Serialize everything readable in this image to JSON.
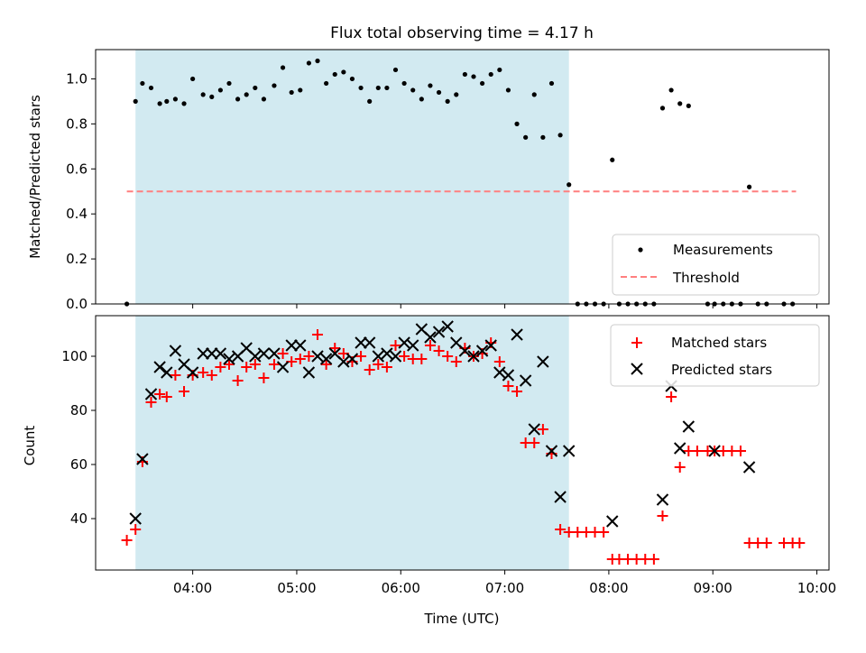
{
  "chart_data": {
    "title": "Flux total observing time = 4.17 h",
    "xlabel": "Time (UTC)",
    "x_ticks": [
      "04:00",
      "05:00",
      "06:00",
      "07:00",
      "08:00",
      "09:00",
      "10:00"
    ],
    "shaded_region": {
      "start": "03:27",
      "end": "07:37",
      "color": "#add8e6"
    },
    "panels": [
      {
        "type": "scatter",
        "ylabel": "Matched/Predicted stars",
        "ylim": [
          0,
          1.13
        ],
        "y_ticks": [
          "0.0",
          "0.2",
          "0.4",
          "0.6",
          "0.8",
          "1.0"
        ],
        "legend": {
          "placement": "lower-right",
          "entries": [
            "Measurements",
            "Threshold"
          ]
        },
        "threshold": {
          "name": "Threshold",
          "value": 0.5,
          "x_start": "03:22",
          "x_end": "09:48",
          "color": "#ff7f7f"
        },
        "series": [
          {
            "name": "Measurements",
            "marker": "dot",
            "color": "#000000",
            "points": [
              [
                "03:22",
                0.0
              ],
              [
                "03:27",
                0.9
              ],
              [
                "03:31",
                0.98
              ],
              [
                "03:36",
                0.96
              ],
              [
                "03:41",
                0.89
              ],
              [
                "03:45",
                0.9
              ],
              [
                "03:50",
                0.91
              ],
              [
                "03:55",
                0.89
              ],
              [
                "04:00",
                1.0
              ],
              [
                "04:06",
                0.93
              ],
              [
                "04:11",
                0.92
              ],
              [
                "04:16",
                0.95
              ],
              [
                "04:21",
                0.98
              ],
              [
                "04:26",
                0.91
              ],
              [
                "04:31",
                0.93
              ],
              [
                "04:36",
                0.96
              ],
              [
                "04:41",
                0.91
              ],
              [
                "04:47",
                0.97
              ],
              [
                "04:52",
                1.05
              ],
              [
                "04:57",
                0.94
              ],
              [
                "05:02",
                0.95
              ],
              [
                "05:07",
                1.07
              ],
              [
                "05:12",
                1.08
              ],
              [
                "05:17",
                0.98
              ],
              [
                "05:22",
                1.02
              ],
              [
                "05:27",
                1.03
              ],
              [
                "05:32",
                1.0
              ],
              [
                "05:37",
                0.96
              ],
              [
                "05:42",
                0.9
              ],
              [
                "05:47",
                0.96
              ],
              [
                "05:52",
                0.96
              ],
              [
                "05:57",
                1.04
              ],
              [
                "06:02",
                0.98
              ],
              [
                "06:07",
                0.95
              ],
              [
                "06:12",
                0.91
              ],
              [
                "06:17",
                0.97
              ],
              [
                "06:22",
                0.94
              ],
              [
                "06:27",
                0.9
              ],
              [
                "06:32",
                0.93
              ],
              [
                "06:37",
                1.02
              ],
              [
                "06:42",
                1.01
              ],
              [
                "06:47",
                0.98
              ],
              [
                "06:52",
                1.02
              ],
              [
                "06:57",
                1.04
              ],
              [
                "07:02",
                0.95
              ],
              [
                "07:07",
                0.8
              ],
              [
                "07:12",
                0.74
              ],
              [
                "07:17",
                0.93
              ],
              [
                "07:22",
                0.74
              ],
              [
                "07:27",
                0.98
              ],
              [
                "07:32",
                0.75
              ],
              [
                "07:37",
                0.53
              ],
              [
                "07:42",
                0.0
              ],
              [
                "07:47",
                0.0
              ],
              [
                "07:52",
                0.0
              ],
              [
                "07:57",
                0.0
              ],
              [
                "08:02",
                0.64
              ],
              [
                "08:06",
                0.0
              ],
              [
                "08:11",
                0.0
              ],
              [
                "08:16",
                0.0
              ],
              [
                "08:21",
                0.0
              ],
              [
                "08:26",
                0.0
              ],
              [
                "08:31",
                0.87
              ],
              [
                "08:36",
                0.95
              ],
              [
                "08:41",
                0.89
              ],
              [
                "08:46",
                0.88
              ],
              [
                "08:57",
                0.0
              ],
              [
                "09:01",
                0.0
              ],
              [
                "09:06",
                0.0
              ],
              [
                "09:11",
                0.0
              ],
              [
                "09:16",
                0.0
              ],
              [
                "09:21",
                0.52
              ],
              [
                "09:26",
                0.0
              ],
              [
                "09:31",
                0.0
              ],
              [
                "09:41",
                0.0
              ],
              [
                "09:46",
                0.0
              ]
            ]
          }
        ]
      },
      {
        "type": "scatter",
        "ylabel": "Count",
        "ylim": [
          21,
          115
        ],
        "y_ticks": [
          "40",
          "60",
          "80",
          "100"
        ],
        "legend": {
          "placement": "top-right",
          "entries": [
            "Matched stars",
            "Predicted stars"
          ]
        },
        "series": [
          {
            "name": "Matched stars",
            "marker": "plus",
            "color": "#ff0000",
            "points": [
              [
                "03:22",
                32
              ],
              [
                "03:27",
                36
              ],
              [
                "03:31",
                61
              ],
              [
                "03:36",
                83
              ],
              [
                "03:41",
                86
              ],
              [
                "03:45",
                85
              ],
              [
                "03:50",
                93
              ],
              [
                "03:55",
                87
              ],
              [
                "04:00",
                93
              ],
              [
                "04:06",
                94
              ],
              [
                "04:11",
                93
              ],
              [
                "04:16",
                96
              ],
              [
                "04:21",
                97
              ],
              [
                "04:26",
                91
              ],
              [
                "04:31",
                96
              ],
              [
                "04:36",
                97
              ],
              [
                "04:41",
                92
              ],
              [
                "04:47",
                97
              ],
              [
                "04:52",
                101
              ],
              [
                "04:57",
                98
              ],
              [
                "05:02",
                99
              ],
              [
                "05:07",
                100
              ],
              [
                "05:12",
                108
              ],
              [
                "05:17",
                97
              ],
              [
                "05:22",
                103
              ],
              [
                "05:27",
                101
              ],
              [
                "05:32",
                98
              ],
              [
                "05:37",
                100
              ],
              [
                "05:42",
                95
              ],
              [
                "05:47",
                97
              ],
              [
                "05:52",
                96
              ],
              [
                "05:57",
                104
              ],
              [
                "06:02",
                100
              ],
              [
                "06:07",
                99
              ],
              [
                "06:12",
                99
              ],
              [
                "06:17",
                104
              ],
              [
                "06:22",
                102
              ],
              [
                "06:27",
                100
              ],
              [
                "06:32",
                98
              ],
              [
                "06:37",
                103
              ],
              [
                "06:42",
                100
              ],
              [
                "06:47",
                101
              ],
              [
                "06:52",
                105
              ],
              [
                "06:57",
                98
              ],
              [
                "07:02",
                89
              ],
              [
                "07:07",
                87
              ],
              [
                "07:12",
                68
              ],
              [
                "07:17",
                68
              ],
              [
                "07:22",
                73
              ],
              [
                "07:27",
                64
              ],
              [
                "07:32",
                36
              ],
              [
                "07:37",
                35
              ],
              [
                "07:42",
                35
              ],
              [
                "07:47",
                35
              ],
              [
                "07:52",
                35
              ],
              [
                "07:57",
                35
              ],
              [
                "08:02",
                25
              ],
              [
                "08:06",
                25
              ],
              [
                "08:11",
                25
              ],
              [
                "08:16",
                25
              ],
              [
                "08:21",
                25
              ],
              [
                "08:26",
                25
              ],
              [
                "08:31",
                41
              ],
              [
                "08:36",
                85
              ],
              [
                "08:41",
                59
              ],
              [
                "08:46",
                65
              ],
              [
                "08:51",
                65
              ],
              [
                "08:57",
                65
              ],
              [
                "09:01",
                65
              ],
              [
                "09:06",
                65
              ],
              [
                "09:11",
                65
              ],
              [
                "09:16",
                65
              ],
              [
                "09:21",
                31
              ],
              [
                "09:26",
                31
              ],
              [
                "09:31",
                31
              ],
              [
                "09:41",
                31
              ],
              [
                "09:46",
                31
              ],
              [
                "09:50",
                31
              ]
            ]
          },
          {
            "name": "Predicted stars",
            "marker": "x",
            "color": "#000000",
            "points": [
              [
                "03:27",
                40
              ],
              [
                "03:31",
                62
              ],
              [
                "03:36",
                86
              ],
              [
                "03:41",
                96
              ],
              [
                "03:45",
                94
              ],
              [
                "03:50",
                102
              ],
              [
                "03:55",
                97
              ],
              [
                "04:00",
                94
              ],
              [
                "04:06",
                101
              ],
              [
                "04:11",
                101
              ],
              [
                "04:16",
                101
              ],
              [
                "04:21",
                99
              ],
              [
                "04:26",
                100
              ],
              [
                "04:31",
                103
              ],
              [
                "04:36",
                100
              ],
              [
                "04:41",
                101
              ],
              [
                "04:47",
                101
              ],
              [
                "04:52",
                96
              ],
              [
                "04:57",
                104
              ],
              [
                "05:02",
                104
              ],
              [
                "05:07",
                94
              ],
              [
                "05:12",
                100
              ],
              [
                "05:17",
                99
              ],
              [
                "05:22",
                101
              ],
              [
                "05:27",
                98
              ],
              [
                "05:32",
                99
              ],
              [
                "05:37",
                105
              ],
              [
                "05:42",
                105
              ],
              [
                "05:47",
                100
              ],
              [
                "05:52",
                101
              ],
              [
                "05:57",
                100
              ],
              [
                "06:02",
                105
              ],
              [
                "06:07",
                104
              ],
              [
                "06:12",
                110
              ],
              [
                "06:17",
                107
              ],
              [
                "06:22",
                109
              ],
              [
                "06:27",
                111
              ],
              [
                "06:32",
                105
              ],
              [
                "06:37",
                102
              ],
              [
                "06:42",
                100
              ],
              [
                "06:47",
                102
              ],
              [
                "06:52",
                104
              ],
              [
                "06:57",
                94
              ],
              [
                "07:02",
                93
              ],
              [
                "07:07",
                108
              ],
              [
                "07:12",
                91
              ],
              [
                "07:17",
                73
              ],
              [
                "07:22",
                98
              ],
              [
                "07:27",
                65
              ],
              [
                "07:32",
                48
              ],
              [
                "07:37",
                65
              ],
              [
                "08:02",
                39
              ],
              [
                "08:31",
                47
              ],
              [
                "08:36",
                89
              ],
              [
                "08:41",
                66
              ],
              [
                "08:46",
                74
              ],
              [
                "09:01",
                65
              ],
              [
                "09:21",
                59
              ]
            ]
          }
        ]
      }
    ]
  }
}
